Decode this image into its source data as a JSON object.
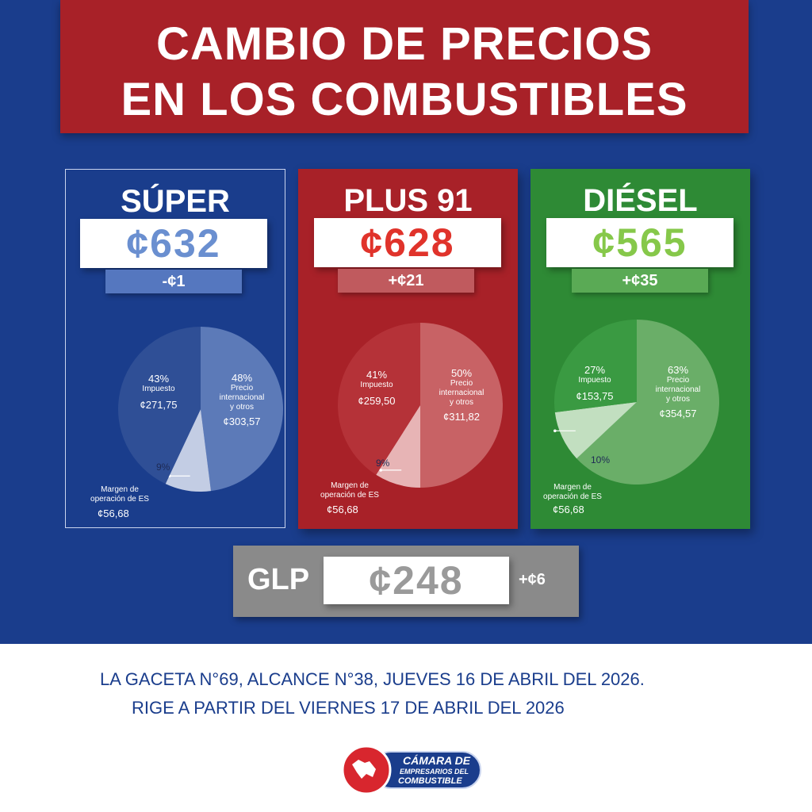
{
  "title": {
    "line1": "CAMBIO DE PRECIOS",
    "line2": "EN LOS COMBUSTIBLES"
  },
  "colors": {
    "blue": "#1a3d8c",
    "red": "#a82128",
    "green": "#2e8a35",
    "gray": "#8a8a8a"
  },
  "fuels": [
    {
      "name": "SÚPER",
      "price": "¢632",
      "change": "-¢1",
      "tax_pct": "43%",
      "tax_label": "Impuesto",
      "tax_amount": "¢271,75",
      "intl_pct": "48%",
      "intl_label_1": "Precio",
      "intl_label_2": "internacional",
      "intl_label_3": "y otros",
      "intl_amount": "¢303,57",
      "margin_pct": "9%",
      "margin_label_1": "Margen de",
      "margin_label_2": "operación de ES",
      "margin_amount": "¢56,68"
    },
    {
      "name": "PLUS 91",
      "price": "¢628",
      "change": "+¢21",
      "tax_pct": "41%",
      "tax_label": "Impuesto",
      "tax_amount": "¢259,50",
      "intl_pct": "50%",
      "intl_label_1": "Precio",
      "intl_label_2": "internacional",
      "intl_label_3": "y otros",
      "intl_amount": "¢311,82",
      "margin_pct": "9%",
      "margin_label_1": "Margen de",
      "margin_label_2": "operación de ES",
      "margin_amount": "¢56,68"
    },
    {
      "name": "DIÉSEL",
      "price": "¢565",
      "change": "+¢35",
      "tax_pct": "27%",
      "tax_label": "Impuesto",
      "tax_amount": "¢153,75",
      "intl_pct": "63%",
      "intl_label_1": "Precio",
      "intl_label_2": "internacional",
      "intl_label_3": "y otros",
      "intl_amount": "¢354,57",
      "margin_pct": "10%",
      "margin_label_1": "Margen de",
      "margin_label_2": "operación de ES",
      "margin_amount": "¢56,68"
    }
  ],
  "glp": {
    "name": "GLP",
    "price": "¢248",
    "change": "+¢6"
  },
  "gaceta": {
    "line1": "LA GACETA N°69, ALCANCE N°38, JUEVES 16 DE ABRIL DEL 2026.",
    "line2": "RIGE A PARTIR DEL VIERNES 17 DE ABRIL DEL 2026"
  },
  "logo": {
    "line1": "CÁMARA DE",
    "line2": "EMPRESARIOS DEL",
    "line3": "COMBUSTIBLE"
  },
  "chart_data": [
    {
      "type": "pie",
      "categories": [
        "Impuesto",
        "Precio internacional y otros",
        "Margen de operación de ES"
      ],
      "values": [
        43,
        48,
        9
      ]
    },
    {
      "type": "pie",
      "categories": [
        "Impuesto",
        "Precio internacional y otros",
        "Margen de operación de ES"
      ],
      "values": [
        41,
        50,
        9
      ]
    },
    {
      "type": "pie",
      "categories": [
        "Impuesto",
        "Precio internacional y otros",
        "Margen de operación de ES"
      ],
      "values": [
        27,
        63,
        10
      ]
    }
  ]
}
